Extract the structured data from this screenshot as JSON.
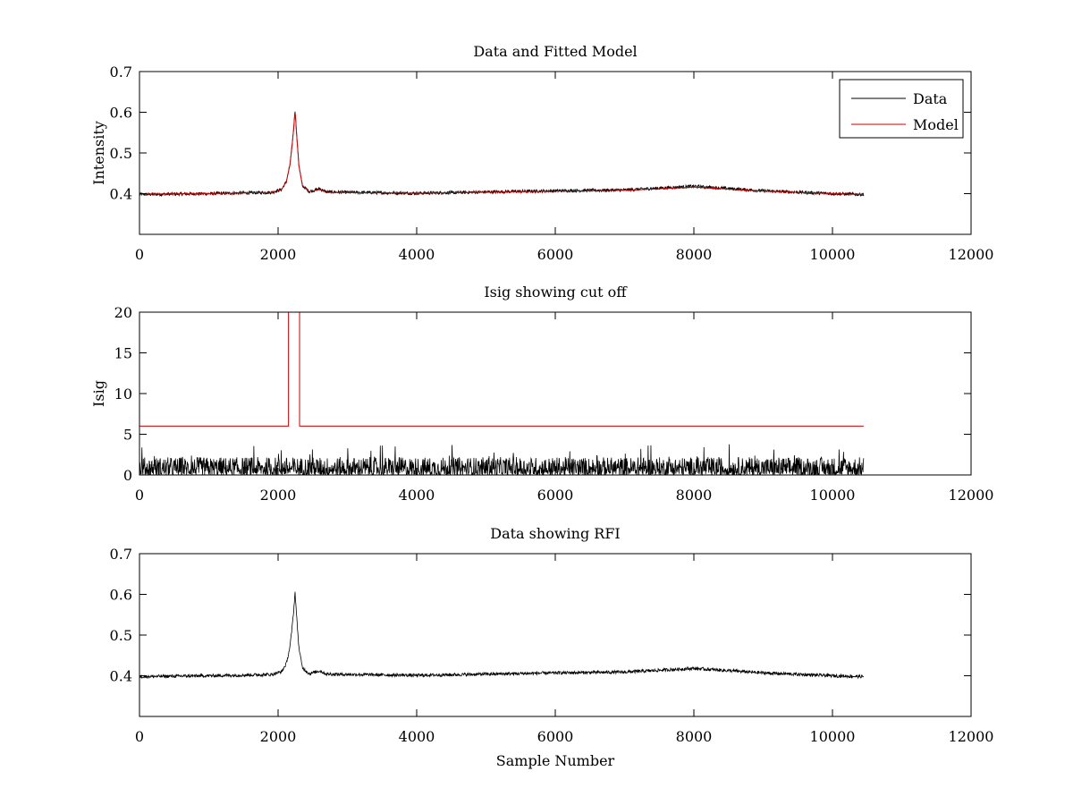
{
  "chart_data": [
    {
      "type": "line",
      "title": "Data and Fitted Model",
      "xlabel": "",
      "ylabel": "Intensity",
      "xlim": [
        0,
        12000
      ],
      "ylim": [
        0.3,
        0.7
      ],
      "xticks": [
        0,
        2000,
        4000,
        6000,
        8000,
        10000,
        12000
      ],
      "yticks": [
        0.4,
        0.5,
        0.6,
        0.7
      ],
      "xtick_labels": [
        "0",
        "2000",
        "4000",
        "6000",
        "8000",
        "10000",
        "12000"
      ],
      "ytick_labels": [
        "0.4",
        "0.5",
        "0.6",
        "0.7"
      ],
      "legend": {
        "placement": "top-right",
        "entries": [
          "Data",
          "Model"
        ]
      },
      "series": [
        {
          "name": "Data",
          "color": "#000000",
          "kind": "noisy",
          "x_range": [
            0,
            10450
          ],
          "baseline_knots": [
            [
              0,
              0.398
            ],
            [
              1000,
              0.4
            ],
            [
              1900,
              0.403
            ],
            [
              2050,
              0.41
            ],
            [
              2120,
              0.43
            ],
            [
              2170,
              0.47
            ],
            [
              2200,
              0.515
            ],
            [
              2225,
              0.56
            ],
            [
              2245,
              0.605
            ],
            [
              2270,
              0.54
            ],
            [
              2300,
              0.47
            ],
            [
              2350,
              0.42
            ],
            [
              2450,
              0.405
            ],
            [
              2600,
              0.412
            ],
            [
              2700,
              0.404
            ],
            [
              4000,
              0.401
            ],
            [
              6000,
              0.407
            ],
            [
              7000,
              0.409
            ],
            [
              8000,
              0.418
            ],
            [
              9000,
              0.407
            ],
            [
              10000,
              0.4
            ],
            [
              10450,
              0.398
            ]
          ],
          "noise_amplitude": 0.004
        },
        {
          "name": "Model",
          "color": "#cc0000",
          "kind": "smooth",
          "x_range": [
            0,
            10450
          ],
          "baseline_knots": [
            [
              0,
              0.399
            ],
            [
              1000,
              0.4
            ],
            [
              1900,
              0.403
            ],
            [
              2050,
              0.41
            ],
            [
              2120,
              0.43
            ],
            [
              2170,
              0.47
            ],
            [
              2200,
              0.515
            ],
            [
              2225,
              0.56
            ],
            [
              2245,
              0.607
            ],
            [
              2270,
              0.54
            ],
            [
              2300,
              0.47
            ],
            [
              2350,
              0.42
            ],
            [
              2450,
              0.405
            ],
            [
              2600,
              0.41
            ],
            [
              2700,
              0.403
            ],
            [
              4000,
              0.401
            ],
            [
              6000,
              0.406
            ],
            [
              7000,
              0.408
            ],
            [
              8000,
              0.416
            ],
            [
              9000,
              0.406
            ],
            [
              10000,
              0.4
            ],
            [
              10450,
              0.398
            ]
          ]
        }
      ]
    },
    {
      "type": "line",
      "title": "Isig showing cut off",
      "xlabel": "",
      "ylabel": "Isig",
      "xlim": [
        0,
        12000
      ],
      "ylim": [
        0,
        20
      ],
      "xticks": [
        0,
        2000,
        4000,
        6000,
        8000,
        10000,
        12000
      ],
      "yticks": [
        0,
        5,
        10,
        15,
        20
      ],
      "xtick_labels": [
        "0",
        "2000",
        "4000",
        "6000",
        "8000",
        "10000",
        "12000"
      ],
      "ytick_labels": [
        "0",
        "5",
        "10",
        "15",
        "20"
      ],
      "series": [
        {
          "color": "#000000",
          "kind": "spiky",
          "x_range": [
            0,
            10450
          ],
          "typical_max": 2.2,
          "peak_max": 3.8
        },
        {
          "color": "#cc0000",
          "kind": "step",
          "points": [
            [
              0,
              6
            ],
            [
              2150,
              6
            ],
            [
              2150,
              20
            ],
            [
              2310,
              20
            ],
            [
              2310,
              6
            ],
            [
              10450,
              6
            ]
          ]
        }
      ]
    },
    {
      "type": "line",
      "title": "Data showing RFI",
      "xlabel": "Sample Number",
      "ylabel": "",
      "xlim": [
        0,
        12000
      ],
      "ylim": [
        0.3,
        0.7
      ],
      "xticks": [
        0,
        2000,
        4000,
        6000,
        8000,
        10000,
        12000
      ],
      "yticks": [
        0.4,
        0.5,
        0.6,
        0.7
      ],
      "xtick_labels": [
        "0",
        "2000",
        "4000",
        "6000",
        "8000",
        "10000",
        "12000"
      ],
      "ytick_labels": [
        "0.4",
        "0.5",
        "0.6",
        "0.7"
      ],
      "series": [
        {
          "color": "#000000",
          "kind": "noisy",
          "x_range": [
            0,
            10450
          ],
          "baseline_knots": [
            [
              0,
              0.398
            ],
            [
              1000,
              0.4
            ],
            [
              1900,
              0.403
            ],
            [
              2050,
              0.41
            ],
            [
              2120,
              0.43
            ],
            [
              2170,
              0.47
            ],
            [
              2200,
              0.515
            ],
            [
              2225,
              0.56
            ],
            [
              2245,
              0.605
            ],
            [
              2270,
              0.54
            ],
            [
              2300,
              0.47
            ],
            [
              2350,
              0.42
            ],
            [
              2450,
              0.405
            ],
            [
              2600,
              0.412
            ],
            [
              2700,
              0.404
            ],
            [
              4000,
              0.401
            ],
            [
              6000,
              0.407
            ],
            [
              7000,
              0.409
            ],
            [
              8000,
              0.418
            ],
            [
              9000,
              0.407
            ],
            [
              10000,
              0.4
            ],
            [
              10450,
              0.398
            ]
          ],
          "noise_amplitude": 0.004
        }
      ]
    }
  ]
}
